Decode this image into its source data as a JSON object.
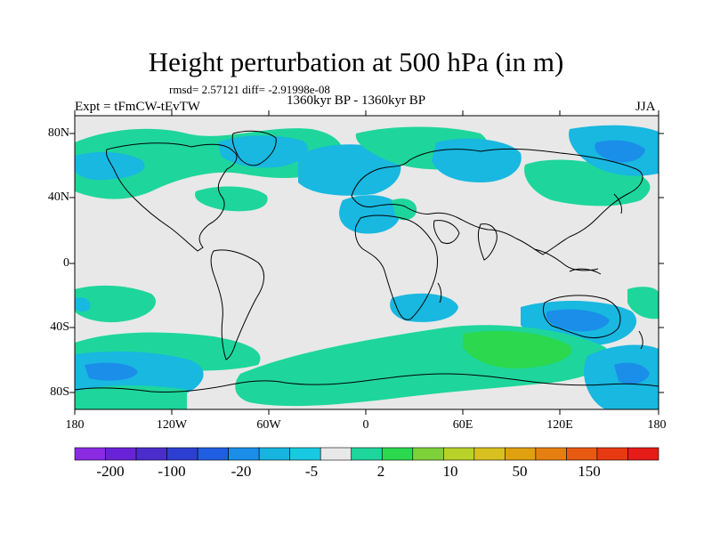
{
  "title": "Height perturbation at 500 hPa (in m)",
  "stats": "rmsd= 2.57121 diff= -2.91998e-08",
  "experiment": "Expt = tFmCW-tEvTW",
  "period": "1360kyr BP - 1360kyr BP",
  "season": "JJA",
  "lat_labels": [
    "80N",
    "40N",
    "0",
    "40S",
    "80S"
  ],
  "lon_labels": [
    "180",
    "120W",
    "60W",
    "0",
    "60E",
    "120E",
    "180"
  ],
  "colorbar": {
    "colors": [
      "#8a2be2",
      "#6a22d8",
      "#4b2ccc",
      "#2d3fd0",
      "#1f5ee0",
      "#1a8ee8",
      "#17b4e0",
      "#18c9e2",
      "#e8e8e8",
      "#1ed69b",
      "#2bd84e",
      "#7fd13a",
      "#b8d22a",
      "#d8c020",
      "#e0a010",
      "#e58010",
      "#e85a12",
      "#e83a12",
      "#e61c18"
    ],
    "labels": [
      "-200",
      "-100",
      "-20",
      "-5",
      "2",
      "10",
      "50",
      "150"
    ]
  },
  "map_colors": {
    "background": "#e8e8e8",
    "blue": "#18b8e0",
    "dark_blue": "#1a8ee8",
    "green": "#1ed69b",
    "dark_green": "#2bd84e"
  }
}
